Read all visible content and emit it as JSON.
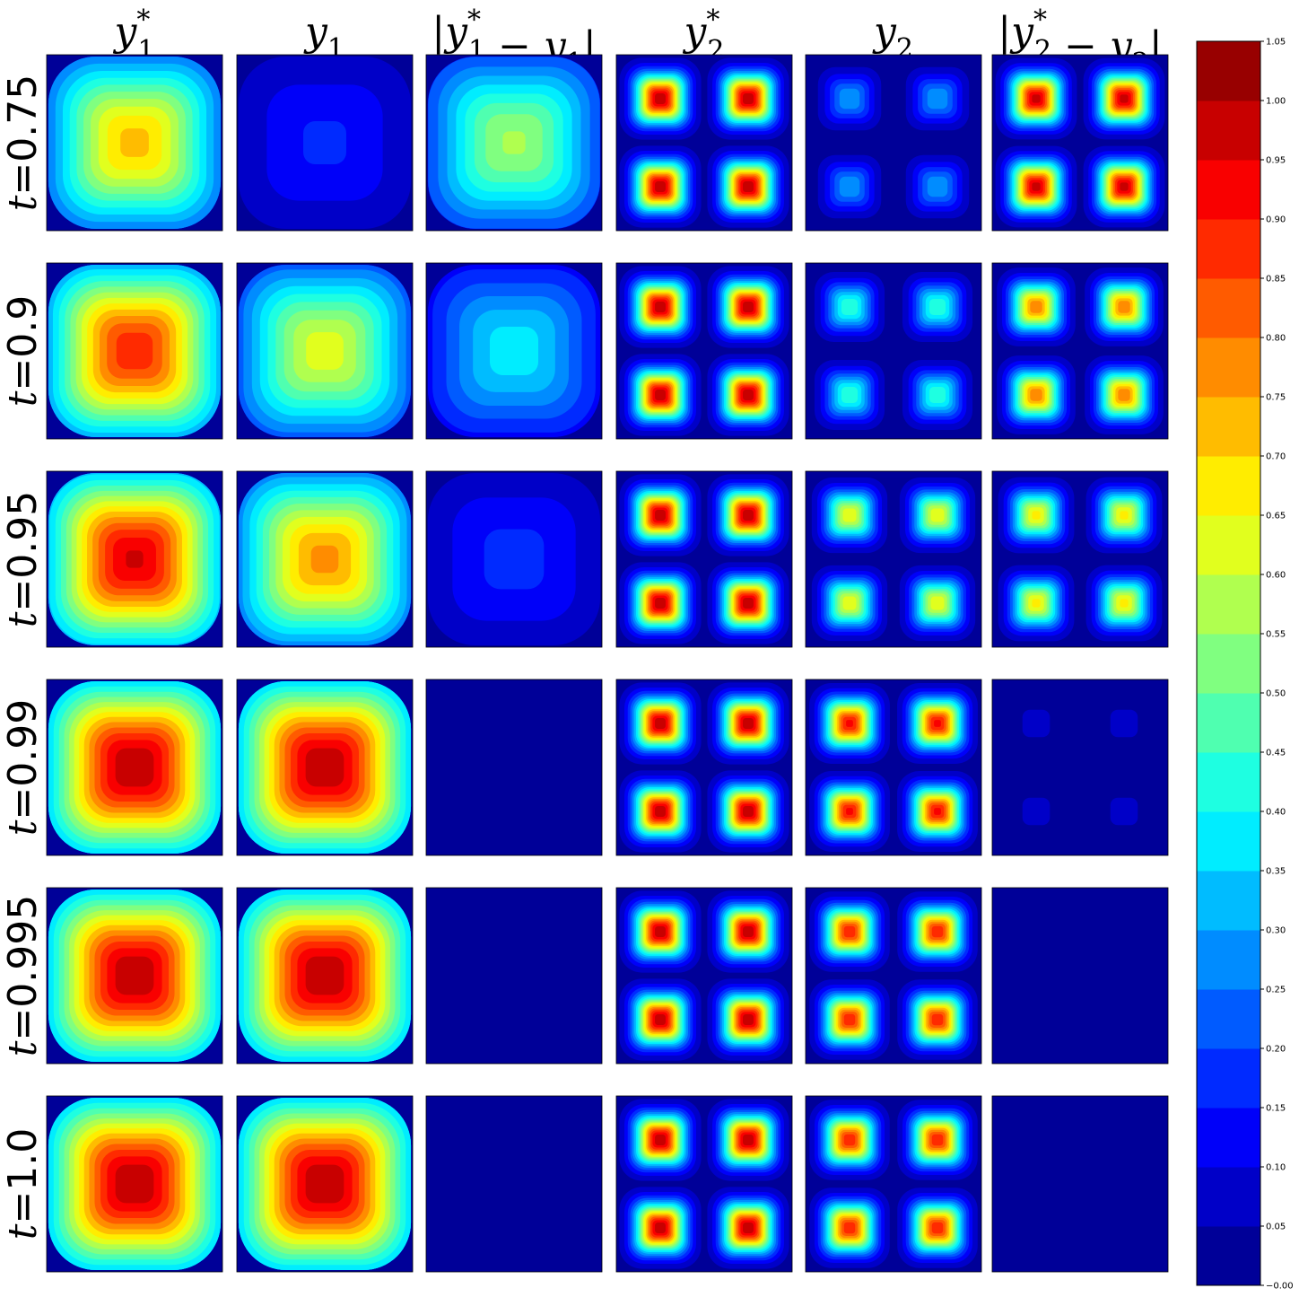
{
  "chart_data": {
    "type": "heatmap",
    "colormap": "jet",
    "columns": [
      {
        "id": "y1_star",
        "title_main": "y",
        "title_sub": "1",
        "title_sup": "*",
        "label": "y1*"
      },
      {
        "id": "y1",
        "title_main": "y",
        "title_sub": "1",
        "title_sup": "",
        "label": "y1"
      },
      {
        "id": "err1",
        "title_main": "|y",
        "title_sub": "1",
        "title_sup": "*",
        "title_tail": " − y",
        "title_tail_sub": "1",
        "title_end": "|",
        "label": "|y1* − y1|"
      },
      {
        "id": "y2_star",
        "title_main": "y",
        "title_sub": "2",
        "title_sup": "*",
        "label": "y2*"
      },
      {
        "id": "y2",
        "title_main": "y",
        "title_sub": "2",
        "title_sup": "",
        "label": "y2"
      },
      {
        "id": "err2",
        "title_main": "|y",
        "title_sub": "2",
        "title_sup": "*",
        "title_tail": " − y",
        "title_tail_sub": "2",
        "title_end": "|",
        "label": "|y2* − y2|"
      }
    ],
    "rows": [
      {
        "label": "t=0.75",
        "t": 0.75
      },
      {
        "label": "t=0.9",
        "t": 0.9
      },
      {
        "label": "t=0.95",
        "t": 0.95
      },
      {
        "label": "t=0.99",
        "t": 0.99
      },
      {
        "label": "t=0.995",
        "t": 0.995
      },
      {
        "label": "t=1.0",
        "t": 1.0
      }
    ],
    "peak_values": [
      [
        0.72,
        0.16,
        0.56,
        1.0,
        0.3,
        0.98
      ],
      [
        0.89,
        0.63,
        0.38,
        1.0,
        0.45,
        0.8
      ],
      [
        0.96,
        0.77,
        0.17,
        1.0,
        0.65,
        0.67
      ],
      [
        1.0,
        1.0,
        0.0,
        1.0,
        0.92,
        0.07
      ],
      [
        1.0,
        1.0,
        0.0,
        1.0,
        0.9,
        0.05
      ],
      [
        1.0,
        1.0,
        0.0,
        1.0,
        0.9,
        0.03
      ]
    ],
    "colorbar": {
      "min": 0.0,
      "max": 1.05,
      "levels": 21,
      "tick_labels": [
        "−0.00",
        "0.05",
        "0.10",
        "0.15",
        "0.20",
        "0.25",
        "0.30",
        "0.35",
        "0.40",
        "0.45",
        "0.50",
        "0.55",
        "0.60",
        "0.65",
        "0.70",
        "0.75",
        "0.80",
        "0.85",
        "0.90",
        "0.95",
        "1.00",
        "1.05"
      ]
    }
  }
}
